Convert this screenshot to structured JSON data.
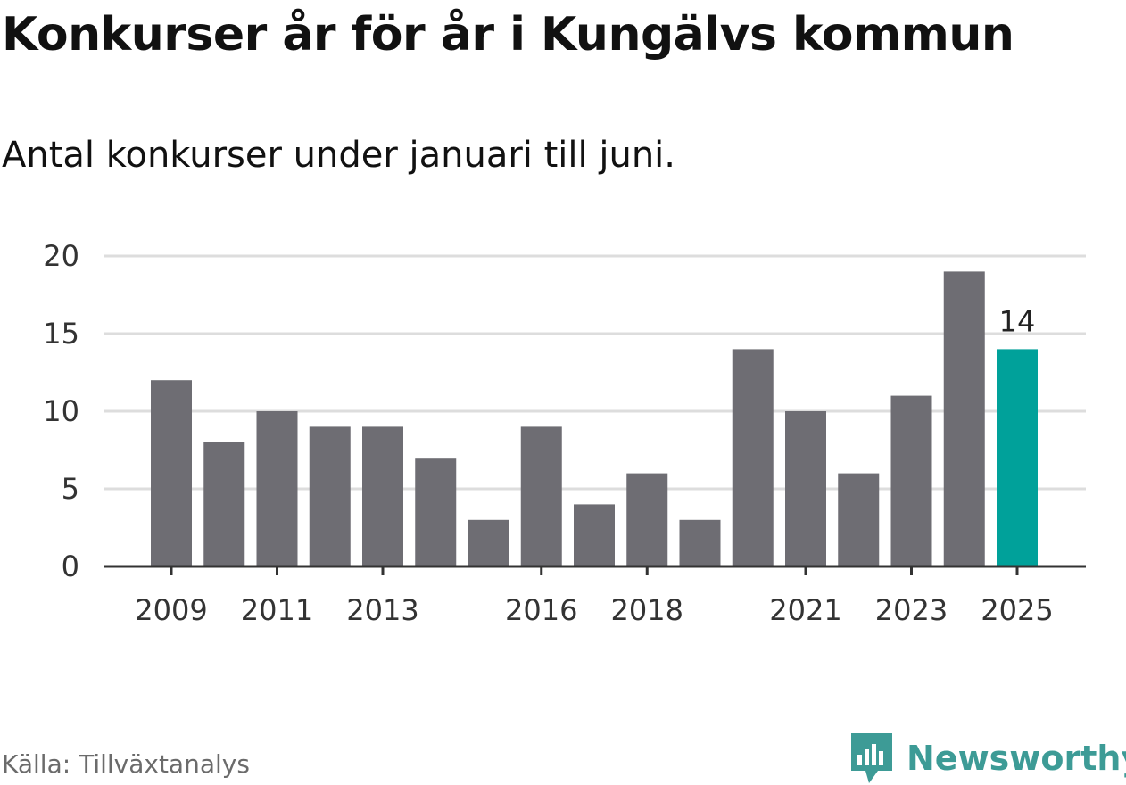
{
  "title": "Konkurser år för år i Kungälvs kommun",
  "subtitle": "Antal konkurser under januari till juni.",
  "source": "Källa: Tillväxtanalys",
  "brand": {
    "name": "Newsworthy",
    "color": "#3d9b96",
    "icon": "bar-chart-speech-bubble-icon"
  },
  "chart_data": {
    "type": "bar",
    "categories": [
      "2009",
      "2010",
      "2011",
      "2012",
      "2013",
      "2014",
      "2015",
      "2016",
      "2017",
      "2018",
      "2019",
      "2020",
      "2021",
      "2022",
      "2023",
      "2024",
      "2025"
    ],
    "values": [
      12,
      8,
      10,
      9,
      9,
      7,
      3,
      9,
      4,
      6,
      3,
      14,
      10,
      6,
      11,
      19,
      14
    ],
    "x_tick_labels": [
      "2009",
      "2011",
      "2013",
      "2016",
      "2018",
      "2021",
      "2023",
      "2025"
    ],
    "y_ticks": [
      0,
      5,
      10,
      15,
      20
    ],
    "ylim": [
      0,
      20
    ],
    "highlight": {
      "category": "2025",
      "label": "14"
    },
    "colors": {
      "bar": "#6e6d73",
      "highlight": "#00a19a",
      "grid": "#dddddd",
      "axis": "#333333"
    },
    "grid": true,
    "xlabel": "",
    "ylabel": ""
  }
}
